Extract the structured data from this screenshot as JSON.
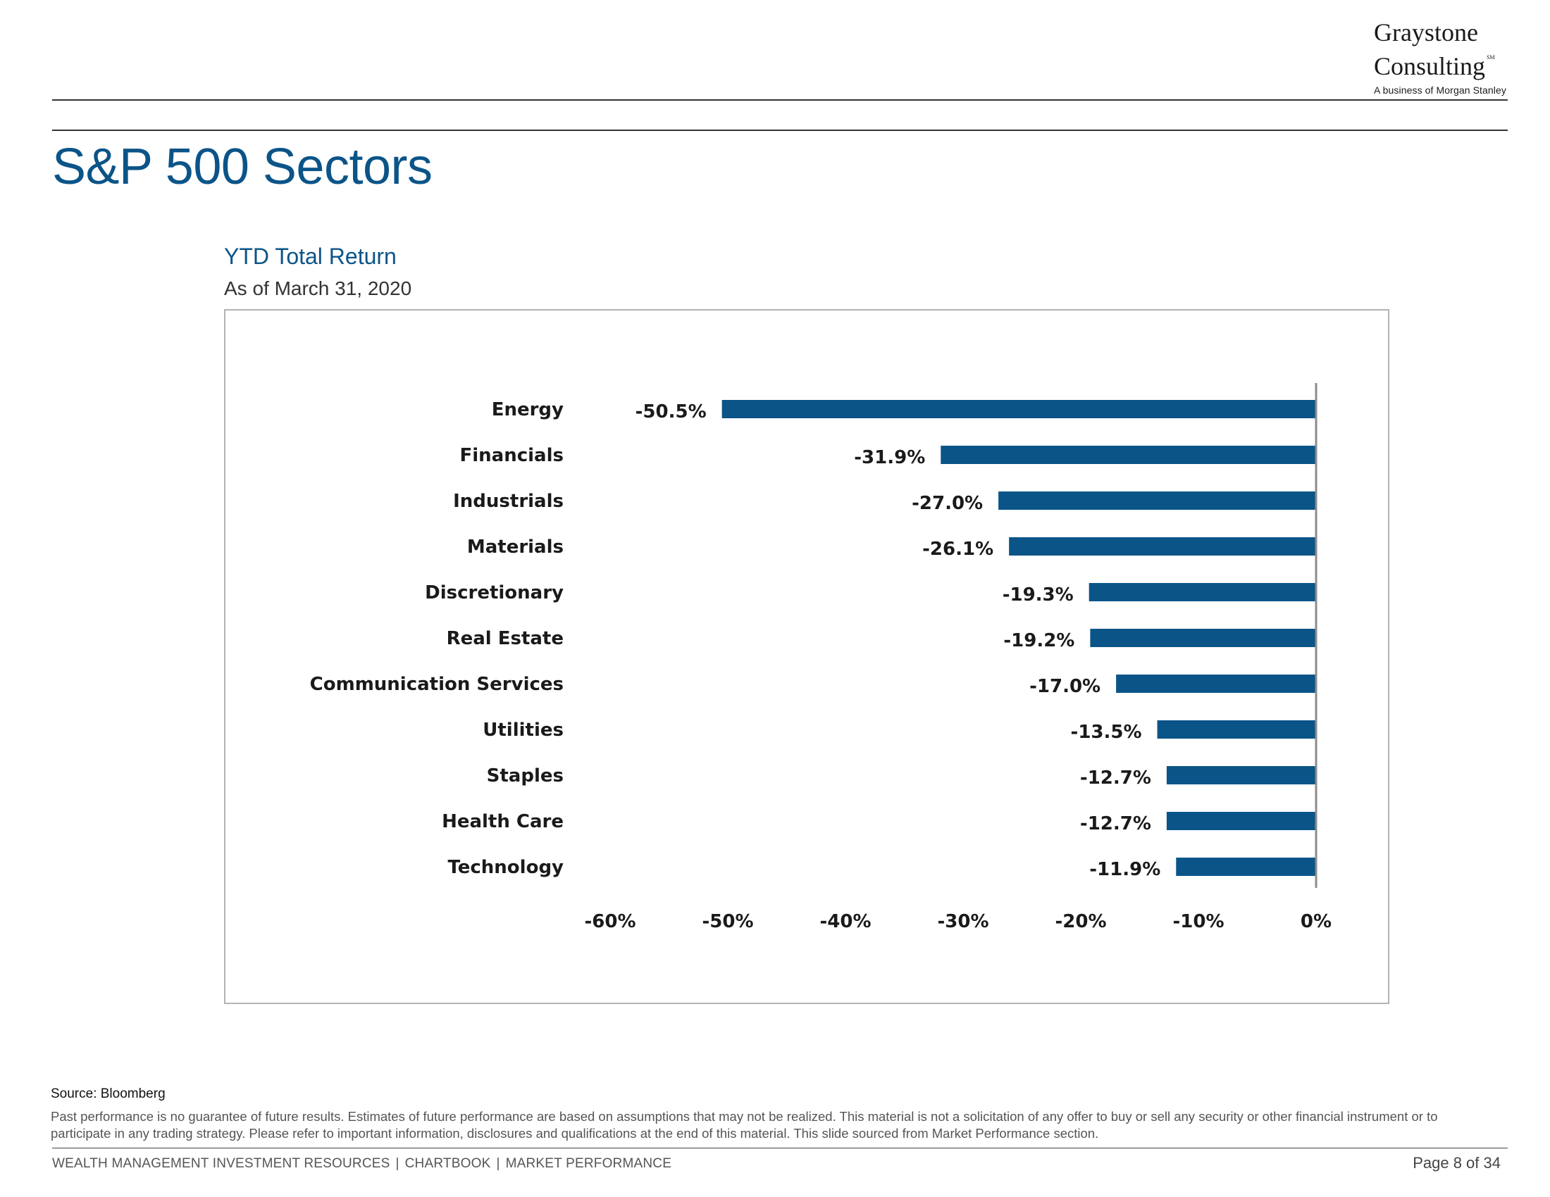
{
  "logo": {
    "line1": "Graystone",
    "line2": "Consulting",
    "mark": "SM",
    "tagline": "A business of Morgan Stanley"
  },
  "page_title": "S&P 500 Sectors",
  "chart_title": "YTD Total Return",
  "chart_subtitle": "As of March 31, 2020",
  "chart_data": {
    "type": "bar",
    "orientation": "horizontal",
    "categories": [
      "Energy",
      "Financials",
      "Industrials",
      "Materials",
      "Discretionary",
      "Real Estate",
      "Communication Services",
      "Utilities",
      "Staples",
      "Health Care",
      "Technology"
    ],
    "values": [
      -50.5,
      -31.9,
      -27.0,
      -26.1,
      -19.3,
      -19.2,
      -17.0,
      -13.5,
      -12.7,
      -12.7,
      -11.9
    ],
    "data_labels": [
      "-50.5%",
      "-31.9%",
      "-27.0%",
      "-26.1%",
      "-19.3%",
      "-19.2%",
      "-17.0%",
      "-13.5%",
      "-12.7%",
      "-12.7%",
      "-11.9%"
    ],
    "xlim": [
      -60,
      0
    ],
    "x_ticks": [
      -60,
      -50,
      -40,
      -30,
      -20,
      -10,
      0
    ],
    "x_tick_labels": [
      "-60%",
      "-50%",
      "-40%",
      "-30%",
      "-20%",
      "-10%",
      "0%"
    ],
    "grid": false,
    "bar_color": "#0b5488"
  },
  "source": "Source: Bloomberg",
  "disclaimer": "Past performance is no guarantee of future results. Estimates of future performance are based on assumptions that may not be realized. This material is not a solicitation of any offer to buy or sell any security or other financial instrument or to participate in any trading strategy. Please refer to important information, disclosures and qualifications at the end of this material. This slide sourced from Market Performance section.",
  "footer": {
    "items": [
      "WEALTH MANAGEMENT INVESTMENT RESOURCES",
      "CHARTBOOK",
      "MARKET PERFORMANCE"
    ],
    "separator": "|",
    "page": "Page 8 of 34"
  },
  "colors": {
    "accent": "#0b5488",
    "frame": "#b3b3b3"
  }
}
